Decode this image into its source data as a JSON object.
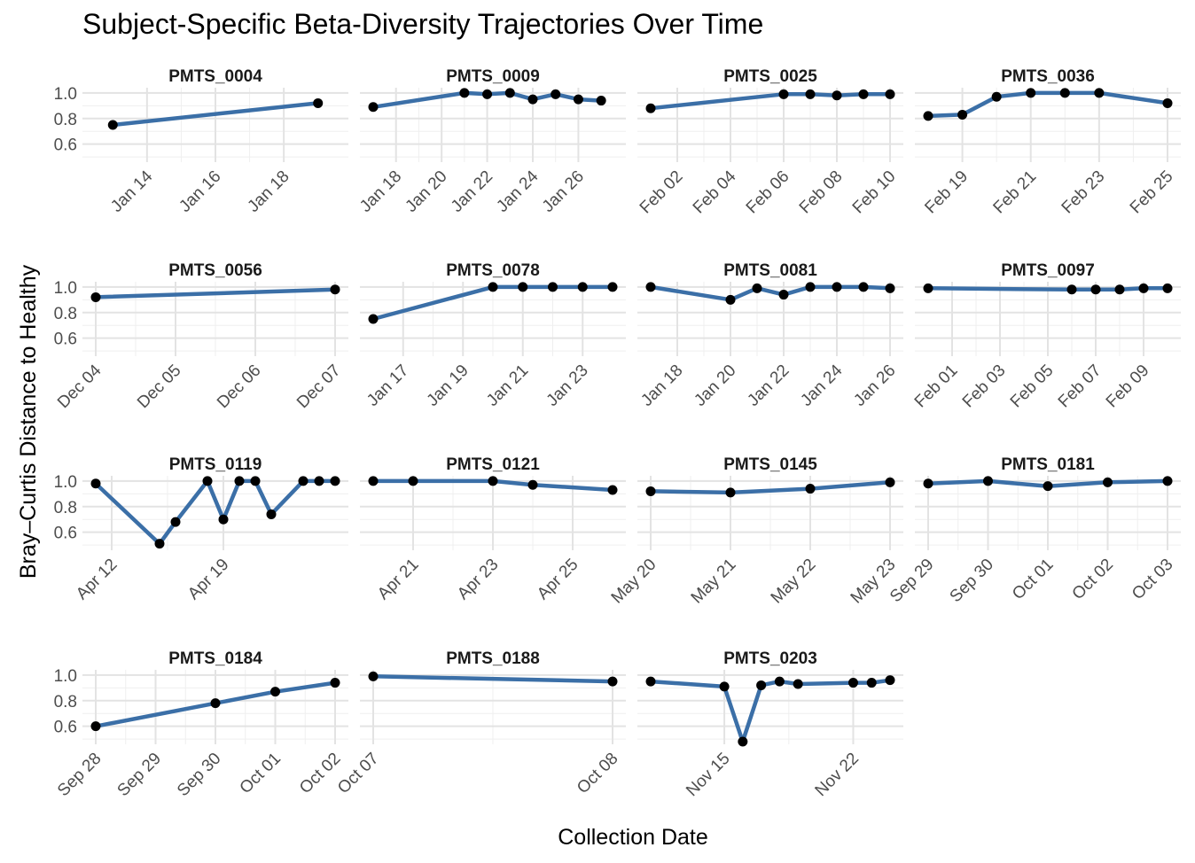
{
  "chart_data": {
    "type": "line",
    "title": "Subject-Specific Beta-Diversity Trajectories Over Time",
    "xlabel": "Collection Date",
    "ylabel": "Bray–Curtis Distance to Healthy",
    "ylim": [
      0.48,
      1.02
    ],
    "yticks": [
      0.6,
      0.8,
      1.0
    ],
    "ytick_labels": [
      "0.6",
      "0.8",
      "1.0"
    ],
    "grid": true,
    "line_color": "#3b6fa7",
    "point_color": "#000000",
    "facets": [
      {
        "name": "PMTS_0004",
        "xlim": [
          "2000-01-12T12:00",
          "2000-01-19T12:00"
        ],
        "ticks": [
          {
            "date": "2000-01-14",
            "label": "Jan 14"
          },
          {
            "date": "2000-01-16",
            "label": "Jan 16"
          },
          {
            "date": "2000-01-18",
            "label": "Jan 18"
          }
        ],
        "x": [
          "2000-01-13",
          "2000-01-19"
        ],
        "y": [
          0.75,
          0.92
        ]
      },
      {
        "name": "PMTS_0009",
        "xlim": [
          "2000-01-17",
          "2000-01-27T12:00"
        ],
        "ticks": [
          {
            "date": "2000-01-18",
            "label": "Jan 18"
          },
          {
            "date": "2000-01-20",
            "label": "Jan 20"
          },
          {
            "date": "2000-01-22",
            "label": "Jan 22"
          },
          {
            "date": "2000-01-24",
            "label": "Jan 24"
          },
          {
            "date": "2000-01-26",
            "label": "Jan 26"
          }
        ],
        "x": [
          "2000-01-17",
          "2000-01-21",
          "2000-01-22",
          "2000-01-23",
          "2000-01-24",
          "2000-01-25",
          "2000-01-26",
          "2000-01-27"
        ],
        "y": [
          0.89,
          1.0,
          0.99,
          1.0,
          0.95,
          0.99,
          0.95,
          0.94
        ]
      },
      {
        "name": "PMTS_0025",
        "xlim": [
          "2000-02-01",
          "2000-02-10"
        ],
        "ticks": [
          {
            "date": "2000-02-02",
            "label": "Feb 02"
          },
          {
            "date": "2000-02-04",
            "label": "Feb 04"
          },
          {
            "date": "2000-02-06",
            "label": "Feb 06"
          },
          {
            "date": "2000-02-08",
            "label": "Feb 08"
          },
          {
            "date": "2000-02-10",
            "label": "Feb 10"
          }
        ],
        "x": [
          "2000-02-01",
          "2000-02-06",
          "2000-02-07",
          "2000-02-08",
          "2000-02-09",
          "2000-02-10"
        ],
        "y": [
          0.88,
          0.99,
          0.99,
          0.98,
          0.99,
          0.99
        ]
      },
      {
        "name": "PMTS_0036",
        "xlim": [
          "2000-02-18",
          "2000-02-25"
        ],
        "ticks": [
          {
            "date": "2000-02-19",
            "label": "Feb 19"
          },
          {
            "date": "2000-02-21",
            "label": "Feb 21"
          },
          {
            "date": "2000-02-23",
            "label": "Feb 23"
          },
          {
            "date": "2000-02-25",
            "label": "Feb 25"
          }
        ],
        "x": [
          "2000-02-18",
          "2000-02-19",
          "2000-02-20",
          "2000-02-21",
          "2000-02-22",
          "2000-02-23",
          "2000-02-25"
        ],
        "y": [
          0.82,
          0.83,
          0.97,
          1.0,
          1.0,
          1.0,
          0.92
        ]
      },
      {
        "name": "PMTS_0056",
        "xlim": [
          "2000-12-04",
          "2000-12-07"
        ],
        "ticks": [
          {
            "date": "2000-12-04",
            "label": "Dec 04"
          },
          {
            "date": "2000-12-05",
            "label": "Dec 05"
          },
          {
            "date": "2000-12-06",
            "label": "Dec 06"
          },
          {
            "date": "2000-12-07",
            "label": "Dec 07"
          }
        ],
        "x": [
          "2000-12-04",
          "2000-12-07"
        ],
        "y": [
          0.92,
          0.98
        ]
      },
      {
        "name": "PMTS_0078",
        "xlim": [
          "2000-01-16",
          "2000-01-24"
        ],
        "ticks": [
          {
            "date": "2000-01-17",
            "label": "Jan 17"
          },
          {
            "date": "2000-01-19",
            "label": "Jan 19"
          },
          {
            "date": "2000-01-21",
            "label": "Jan 21"
          },
          {
            "date": "2000-01-23",
            "label": "Jan 23"
          }
        ],
        "x": [
          "2000-01-16",
          "2000-01-20",
          "2000-01-21",
          "2000-01-22",
          "2000-01-23",
          "2000-01-24"
        ],
        "y": [
          0.75,
          1.0,
          1.0,
          1.0,
          1.0,
          1.0
        ]
      },
      {
        "name": "PMTS_0081",
        "xlim": [
          "2000-01-17",
          "2000-01-26"
        ],
        "ticks": [
          {
            "date": "2000-01-18",
            "label": "Jan 18"
          },
          {
            "date": "2000-01-20",
            "label": "Jan 20"
          },
          {
            "date": "2000-01-22",
            "label": "Jan 22"
          },
          {
            "date": "2000-01-24",
            "label": "Jan 24"
          },
          {
            "date": "2000-01-26",
            "label": "Jan 26"
          }
        ],
        "x": [
          "2000-01-17",
          "2000-01-20",
          "2000-01-21",
          "2000-01-22",
          "2000-01-23",
          "2000-01-24",
          "2000-01-25",
          "2000-01-26"
        ],
        "y": [
          1.0,
          0.9,
          0.99,
          0.94,
          1.0,
          1.0,
          1.0,
          0.99
        ]
      },
      {
        "name": "PMTS_0097",
        "xlim": [
          "2000-01-31",
          "2000-02-10"
        ],
        "ticks": [
          {
            "date": "2000-02-01",
            "label": "Feb 01"
          },
          {
            "date": "2000-02-03",
            "label": "Feb 03"
          },
          {
            "date": "2000-02-05",
            "label": "Feb 05"
          },
          {
            "date": "2000-02-07",
            "label": "Feb 07"
          },
          {
            "date": "2000-02-09",
            "label": "Feb 09"
          }
        ],
        "x": [
          "2000-01-31",
          "2000-02-06",
          "2000-02-07",
          "2000-02-08",
          "2000-02-09",
          "2000-02-10"
        ],
        "y": [
          0.99,
          0.98,
          0.98,
          0.98,
          0.99,
          0.99
        ]
      },
      {
        "name": "PMTS_0119",
        "xlim": [
          "2000-04-11",
          "2000-04-26"
        ],
        "ticks": [
          {
            "date": "2000-04-12",
            "label": "Apr 12"
          },
          {
            "date": "2000-04-19",
            "label": "Apr 19"
          }
        ],
        "x": [
          "2000-04-11",
          "2000-04-15",
          "2000-04-16",
          "2000-04-18",
          "2000-04-19",
          "2000-04-20",
          "2000-04-21",
          "2000-04-22",
          "2000-04-24",
          "2000-04-25",
          "2000-04-26"
        ],
        "y": [
          0.98,
          0.51,
          0.68,
          1.0,
          0.7,
          1.0,
          1.0,
          0.74,
          1.0,
          1.0,
          1.0
        ]
      },
      {
        "name": "PMTS_0121",
        "xlim": [
          "2000-04-20",
          "2000-04-26"
        ],
        "ticks": [
          {
            "date": "2000-04-21",
            "label": "Apr 21"
          },
          {
            "date": "2000-04-23",
            "label": "Apr 23"
          },
          {
            "date": "2000-04-25",
            "label": "Apr 25"
          }
        ],
        "x": [
          "2000-04-20",
          "2000-04-21",
          "2000-04-23",
          "2000-04-24",
          "2000-04-26"
        ],
        "y": [
          1.0,
          1.0,
          1.0,
          0.97,
          0.93
        ]
      },
      {
        "name": "PMTS_0145",
        "xlim": [
          "2000-05-20",
          "2000-05-23"
        ],
        "ticks": [
          {
            "date": "2000-05-20",
            "label": "May 20"
          },
          {
            "date": "2000-05-21",
            "label": "May 21"
          },
          {
            "date": "2000-05-22",
            "label": "May 22"
          },
          {
            "date": "2000-05-23",
            "label": "May 23"
          }
        ],
        "x": [
          "2000-05-20",
          "2000-05-21",
          "2000-05-22",
          "2000-05-23"
        ],
        "y": [
          0.92,
          0.91,
          0.94,
          0.99
        ]
      },
      {
        "name": "PMTS_0181",
        "xlim": [
          "2000-09-29",
          "2000-10-03"
        ],
        "ticks": [
          {
            "date": "2000-09-29",
            "label": "Sep 29"
          },
          {
            "date": "2000-09-30",
            "label": "Sep 30"
          },
          {
            "date": "2000-10-01",
            "label": "Oct 01"
          },
          {
            "date": "2000-10-02",
            "label": "Oct 02"
          },
          {
            "date": "2000-10-03",
            "label": "Oct 03"
          }
        ],
        "x": [
          "2000-09-29",
          "2000-09-30",
          "2000-10-01",
          "2000-10-02",
          "2000-10-03"
        ],
        "y": [
          0.98,
          1.0,
          0.96,
          0.99,
          1.0
        ]
      },
      {
        "name": "PMTS_0184",
        "xlim": [
          "2000-09-28",
          "2000-10-02"
        ],
        "ticks": [
          {
            "date": "2000-09-28",
            "label": "Sep 28"
          },
          {
            "date": "2000-09-29",
            "label": "Sep 29"
          },
          {
            "date": "2000-09-30",
            "label": "Sep 30"
          },
          {
            "date": "2000-10-01",
            "label": "Oct 01"
          },
          {
            "date": "2000-10-02",
            "label": "Oct 02"
          }
        ],
        "x": [
          "2000-09-28",
          "2000-09-30",
          "2000-10-01",
          "2000-10-02"
        ],
        "y": [
          0.6,
          0.78,
          0.87,
          0.94
        ]
      },
      {
        "name": "PMTS_0188",
        "xlim": [
          "2000-10-07",
          "2000-10-08"
        ],
        "ticks": [
          {
            "date": "2000-10-07",
            "label": "Oct 07"
          },
          {
            "date": "2000-10-08",
            "label": "Oct 08"
          }
        ],
        "x": [
          "2000-10-07",
          "2000-10-08"
        ],
        "y": [
          0.99,
          0.95
        ]
      },
      {
        "name": "PMTS_0203",
        "xlim": [
          "2000-11-11",
          "2000-11-24"
        ],
        "ticks": [
          {
            "date": "2000-11-15",
            "label": "Nov 15"
          },
          {
            "date": "2000-11-22",
            "label": "Nov 22"
          }
        ],
        "x": [
          "2000-11-11",
          "2000-11-15",
          "2000-11-16",
          "2000-11-17",
          "2000-11-18",
          "2000-11-19",
          "2000-11-22",
          "2000-11-23",
          "2000-11-24"
        ],
        "y": [
          0.95,
          0.91,
          0.48,
          0.92,
          0.95,
          0.93,
          0.94,
          0.94,
          0.96
        ]
      }
    ]
  }
}
